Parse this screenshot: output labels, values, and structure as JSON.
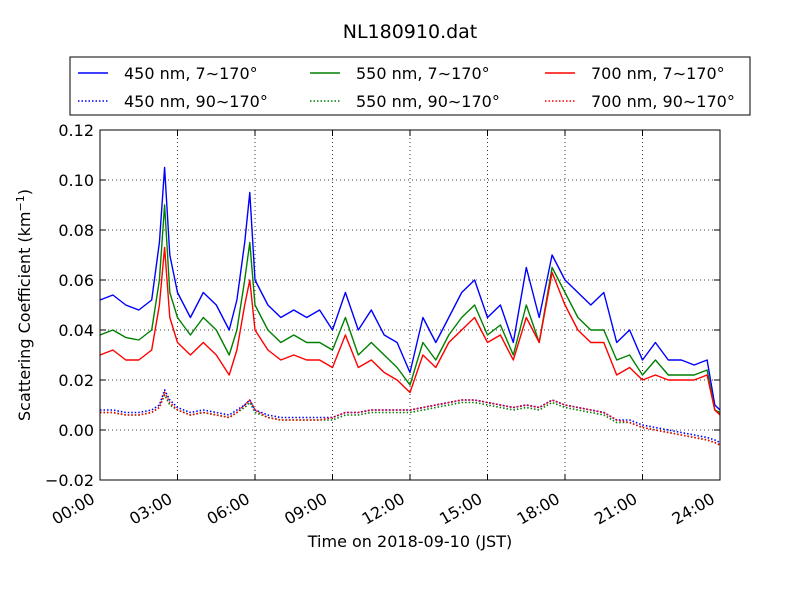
{
  "chart_data": {
    "type": "line",
    "title": "NL180910.dat",
    "xlabel": "Time on 2018-09-10 (JST)",
    "ylabel": "Scattering Coefficient (km",
    "ylabel_sup": "−1",
    "ylabel_end": ")",
    "xlim": [
      0,
      24
    ],
    "ylim": [
      -0.02,
      0.12
    ],
    "x_ticks": [
      0,
      3,
      6,
      9,
      12,
      15,
      18,
      21,
      24
    ],
    "x_tick_labels": [
      "00:00",
      "03:00",
      "06:00",
      "09:00",
      "12:00",
      "15:00",
      "18:00",
      "21:00",
      "24:00"
    ],
    "y_ticks": [
      -0.02,
      0.0,
      0.02,
      0.04,
      0.06,
      0.08,
      0.1,
      0.12
    ],
    "y_tick_labels": [
      "−0.02",
      "0.00",
      "0.02",
      "0.04",
      "0.06",
      "0.08",
      "0.10",
      "0.12"
    ],
    "grid": true,
    "legend_position": "top, above plot",
    "x": [
      0.0,
      0.5,
      1.0,
      1.5,
      2.0,
      2.3,
      2.5,
      2.7,
      3.0,
      3.5,
      4.0,
      4.5,
      5.0,
      5.3,
      5.6,
      5.8,
      6.0,
      6.5,
      7.0,
      7.5,
      8.0,
      8.5,
      9.0,
      9.5,
      10.0,
      10.5,
      11.0,
      11.5,
      12.0,
      12.5,
      13.0,
      13.5,
      14.0,
      14.5,
      15.0,
      15.5,
      16.0,
      16.5,
      17.0,
      17.5,
      18.0,
      18.5,
      19.0,
      19.5,
      20.0,
      20.5,
      21.0,
      21.5,
      22.0,
      22.5,
      23.0,
      23.5,
      23.8,
      24.0
    ],
    "series": [
      {
        "name": "450 nm, 7∼170°",
        "color": "#0000ff",
        "style": "solid",
        "values": [
          0.052,
          0.054,
          0.05,
          0.048,
          0.052,
          0.075,
          0.105,
          0.07,
          0.055,
          0.045,
          0.055,
          0.05,
          0.04,
          0.052,
          0.075,
          0.095,
          0.06,
          0.05,
          0.045,
          0.048,
          0.045,
          0.048,
          0.04,
          0.055,
          0.04,
          0.048,
          0.038,
          0.035,
          0.023,
          0.045,
          0.035,
          0.045,
          0.055,
          0.06,
          0.045,
          0.05,
          0.035,
          0.065,
          0.045,
          0.07,
          0.06,
          0.055,
          0.05,
          0.055,
          0.035,
          0.04,
          0.028,
          0.035,
          0.028,
          0.028,
          0.026,
          0.028,
          0.01,
          0.008
        ]
      },
      {
        "name": "550 nm, 7∼170°",
        "color": "#008000",
        "style": "solid",
        "values": [
          0.038,
          0.04,
          0.037,
          0.036,
          0.04,
          0.06,
          0.09,
          0.055,
          0.045,
          0.038,
          0.045,
          0.04,
          0.03,
          0.04,
          0.06,
          0.075,
          0.05,
          0.04,
          0.035,
          0.038,
          0.035,
          0.035,
          0.032,
          0.045,
          0.03,
          0.035,
          0.03,
          0.025,
          0.018,
          0.035,
          0.028,
          0.038,
          0.045,
          0.05,
          0.038,
          0.042,
          0.03,
          0.05,
          0.035,
          0.065,
          0.055,
          0.045,
          0.04,
          0.04,
          0.028,
          0.03,
          0.022,
          0.028,
          0.022,
          0.022,
          0.022,
          0.024,
          0.008,
          0.007
        ]
      },
      {
        "name": "700 nm, 7∼170°",
        "color": "#ff0000",
        "style": "solid",
        "values": [
          0.03,
          0.032,
          0.028,
          0.028,
          0.032,
          0.05,
          0.073,
          0.045,
          0.035,
          0.03,
          0.035,
          0.03,
          0.022,
          0.032,
          0.05,
          0.06,
          0.04,
          0.032,
          0.028,
          0.03,
          0.028,
          0.028,
          0.025,
          0.038,
          0.025,
          0.028,
          0.023,
          0.02,
          0.015,
          0.03,
          0.025,
          0.035,
          0.04,
          0.045,
          0.035,
          0.038,
          0.028,
          0.045,
          0.035,
          0.063,
          0.05,
          0.04,
          0.035,
          0.035,
          0.022,
          0.025,
          0.02,
          0.022,
          0.02,
          0.02,
          0.02,
          0.022,
          0.008,
          0.006
        ]
      },
      {
        "name": "450 nm, 90∼170°",
        "color": "#0000ff",
        "style": "dotted",
        "values": [
          0.008,
          0.008,
          0.007,
          0.007,
          0.008,
          0.01,
          0.016,
          0.012,
          0.009,
          0.007,
          0.008,
          0.007,
          0.006,
          0.008,
          0.01,
          0.012,
          0.008,
          0.006,
          0.005,
          0.005,
          0.005,
          0.005,
          0.005,
          0.007,
          0.007,
          0.008,
          0.008,
          0.008,
          0.008,
          0.009,
          0.01,
          0.011,
          0.012,
          0.012,
          0.011,
          0.01,
          0.009,
          0.01,
          0.009,
          0.012,
          0.01,
          0.009,
          0.008,
          0.007,
          0.004,
          0.004,
          0.002,
          0.001,
          0.0,
          -0.001,
          -0.002,
          -0.003,
          -0.004,
          -0.005
        ]
      },
      {
        "name": "550 nm, 90∼170°",
        "color": "#008000",
        "style": "dotted",
        "values": [
          0.007,
          0.007,
          0.006,
          0.006,
          0.007,
          0.009,
          0.014,
          0.01,
          0.008,
          0.006,
          0.007,
          0.006,
          0.005,
          0.007,
          0.009,
          0.011,
          0.007,
          0.005,
          0.004,
          0.004,
          0.004,
          0.004,
          0.004,
          0.006,
          0.006,
          0.007,
          0.007,
          0.007,
          0.007,
          0.008,
          0.009,
          0.01,
          0.011,
          0.011,
          0.01,
          0.009,
          0.008,
          0.009,
          0.008,
          0.011,
          0.009,
          0.008,
          0.007,
          0.006,
          0.003,
          0.003,
          0.001,
          0.0,
          -0.001,
          -0.002,
          -0.003,
          -0.004,
          -0.005,
          -0.006
        ]
      },
      {
        "name": "700 nm, 90∼170°",
        "color": "#ff0000",
        "style": "dotted",
        "values": [
          0.007,
          0.007,
          0.006,
          0.006,
          0.007,
          0.009,
          0.015,
          0.011,
          0.008,
          0.006,
          0.007,
          0.006,
          0.005,
          0.007,
          0.01,
          0.012,
          0.008,
          0.005,
          0.004,
          0.004,
          0.004,
          0.004,
          0.005,
          0.007,
          0.007,
          0.008,
          0.008,
          0.008,
          0.008,
          0.009,
          0.01,
          0.011,
          0.012,
          0.012,
          0.011,
          0.01,
          0.009,
          0.01,
          0.009,
          0.012,
          0.01,
          0.009,
          0.008,
          0.007,
          0.004,
          0.003,
          0.001,
          0.0,
          -0.001,
          -0.002,
          -0.003,
          -0.004,
          -0.005,
          -0.006
        ]
      }
    ]
  }
}
